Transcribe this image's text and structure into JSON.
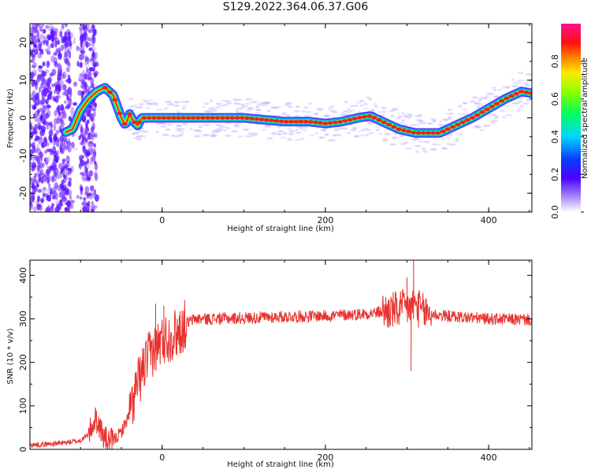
{
  "page": {
    "title": "S129.2022.364.06.37.G06"
  },
  "chart_data": [
    {
      "type": "heatmap",
      "title": "S129.2022.364.06.37.G06",
      "xlabel": "Height of straight line (km)",
      "ylabel": "Frequency (Hz)",
      "xlim": [
        -162,
        453
      ],
      "ylim": [
        -25,
        25
      ],
      "x_ticks": [
        0,
        200,
        400
      ],
      "y_ticks": [
        -20,
        -10,
        0,
        10,
        20
      ],
      "colorbar": {
        "label": "Normalized spectral amplitude",
        "range": [
          0,
          1
        ],
        "ticks": [
          0.0,
          0.2,
          0.4,
          0.6,
          0.8
        ],
        "colormap": "gist_rainbow"
      },
      "ridge_frequency": {
        "x": [
          -120,
          -110,
          -100,
          -90,
          -80,
          -70,
          -60,
          -55,
          -50,
          -45,
          -40,
          -35,
          -30,
          -25,
          -20,
          0,
          50,
          100,
          150,
          180,
          200,
          220,
          240,
          255,
          270,
          290,
          310,
          340,
          360,
          380,
          400,
          420,
          440,
          453
        ],
        "y": [
          -4,
          -3,
          2,
          5,
          7,
          8,
          6,
          3,
          0,
          -2,
          1,
          -1,
          -2,
          0,
          0,
          0,
          0,
          0,
          -1,
          -1,
          -1.5,
          -1,
          0,
          0.5,
          -1,
          -3,
          -4,
          -4,
          -2,
          0,
          2.5,
          5,
          7,
          6.5
        ]
      }
    },
    {
      "type": "line",
      "xlabel": "Height of straight line (km)",
      "ylabel": "SNR (10 * v/v)",
      "xlim": [
        -162,
        453
      ],
      "ylim": [
        0,
        435
      ],
      "x_ticks": [
        0,
        200,
        400
      ],
      "y_ticks": [
        0,
        100,
        200,
        300,
        400
      ],
      "color": "#e8322e",
      "series": [
        {
          "x": [
            -162,
            -140,
            -120,
            -100,
            -90,
            -82,
            -78,
            -72,
            -66,
            -60,
            -50,
            -40,
            -30,
            -20,
            -10,
            -5,
            0,
            10,
            20,
            30,
            40,
            60,
            100,
            150,
            200,
            250,
            280,
            300,
            310,
            320,
            340,
            360,
            400,
            453
          ],
          "y": [
            10,
            12,
            15,
            20,
            35,
            70,
            60,
            30,
            18,
            20,
            40,
            80,
            150,
            200,
            230,
            240,
            250,
            260,
            270,
            290,
            300,
            300,
            302,
            305,
            307,
            312,
            318,
            325,
            330,
            315,
            308,
            305,
            300,
            298
          ]
        }
      ],
      "spikes": [
        {
          "x": -8,
          "y": 335
        },
        {
          "x": 2,
          "y": 330
        },
        {
          "x": 300,
          "y": 395
        },
        {
          "x": 308,
          "y": 440
        },
        {
          "x": 305,
          "y": 180
        }
      ]
    }
  ]
}
